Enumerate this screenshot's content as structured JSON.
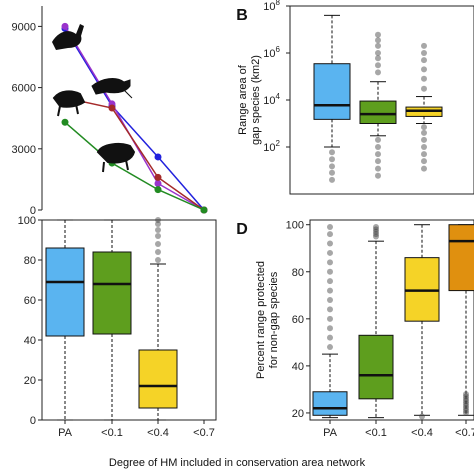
{
  "xlabel": "Degree of HM included in conservation area network",
  "chart_data": [
    {
      "panel": "",
      "type": "line",
      "categories": [
        "PA",
        "<0.1",
        "<0.4",
        "<0.7"
      ],
      "ylim": [
        0,
        10000
      ],
      "yticks": [
        0,
        3000,
        6000,
        9000
      ],
      "ylabel": "",
      "series": [
        {
          "color": "#2222dd",
          "values": [
            8900,
            5100,
            2600,
            0
          ]
        },
        {
          "color": "#9933cc",
          "values": [
            9000,
            5200,
            1300,
            0
          ]
        },
        {
          "color": "#a52a2a",
          "values": [
            5500,
            5000,
            1600,
            0
          ]
        },
        {
          "color": "#228b22",
          "values": [
            4300,
            2300,
            1000,
            0
          ]
        }
      ],
      "icons": [
        "bird-silhouette",
        "rodent-silhouette",
        "primate-silhouette",
        "boar-silhouette"
      ]
    },
    {
      "panel": "B",
      "type": "box",
      "scale": "log",
      "ylim": [
        1,
        100000000
      ],
      "yticks": [
        {
          "v": 100,
          "e": "2"
        },
        {
          "v": 10000,
          "e": "4"
        },
        {
          "v": 1000000,
          "e": "6"
        },
        {
          "v": 100000000,
          "e": "8"
        }
      ],
      "tick_base": "10",
      "ylabel_lines": [
        "Range area of",
        "gap species (km2)"
      ],
      "boxes": [
        {
          "color": "#5ab4f0",
          "whisker_low": 100,
          "q1": 1500,
          "median": 6000,
          "q3": 350000,
          "whisker_high": 40000000,
          "outliers_low": [
            60,
            30,
            15,
            8,
            4
          ],
          "outliers_high": []
        },
        {
          "color": "#5e9e1e",
          "whisker_low": 300,
          "q1": 1000,
          "median": 2500,
          "q3": 9000,
          "whisker_high": 60000,
          "outliers_low": [
            200,
            100,
            50,
            25,
            12,
            6
          ],
          "outliers_high": [
            150000,
            300000,
            600000,
            1000000,
            2000000,
            3500000,
            6000000
          ]
        },
        {
          "color": "#f5d327",
          "whisker_low": 1000,
          "q1": 2000,
          "median": 3500,
          "q3": 5000,
          "whisker_high": 14000,
          "outliers_low": [
            700,
            400,
            200,
            100,
            50,
            25,
            12
          ],
          "outliers_high": [
            30000,
            80000,
            200000,
            500000,
            1000000,
            2000000
          ]
        }
      ]
    },
    {
      "panel": "",
      "type": "box",
      "scale": "linear",
      "ylim": [
        0,
        100
      ],
      "yticks": [
        0,
        20,
        40,
        60,
        80,
        100
      ],
      "ylabel": "",
      "categories": [
        "PA",
        "<0.1",
        "<0.4",
        "<0.7"
      ],
      "boxes": [
        {
          "color": "#5ab4f0",
          "whisker_low": 0,
          "q1": 42,
          "median": 69,
          "q3": 86,
          "whisker_high": 100,
          "outliers_low": [],
          "outliers_high": []
        },
        {
          "color": "#5e9e1e",
          "whisker_low": 0,
          "q1": 43,
          "median": 68,
          "q3": 84,
          "whisker_high": 100,
          "outliers_low": [],
          "outliers_high": []
        },
        {
          "color": "#f5d327",
          "whisker_low": 0,
          "q1": 6,
          "median": 17,
          "q3": 35,
          "whisker_high": 78,
          "outliers_low": [],
          "outliers_high": [
            80,
            84,
            88,
            92,
            95,
            98,
            100
          ]
        }
      ]
    },
    {
      "panel": "D",
      "type": "box",
      "scale": "linear",
      "ylim": [
        17,
        102
      ],
      "yticks": [
        20,
        40,
        60,
        80,
        100
      ],
      "ylabel_lines": [
        "Percent range protected",
        "for non-gap species"
      ],
      "categories": [
        "PA",
        "<0.1",
        "<0.4",
        "<0.7"
      ],
      "boxes": [
        {
          "color": "#5ab4f0",
          "whisker_low": 18,
          "q1": 19,
          "median": 22,
          "q3": 29,
          "whisker_high": 45,
          "outliers_low": [],
          "outliers_high": [
            48,
            52,
            56,
            60,
            64,
            68,
            72,
            76,
            80,
            84,
            88,
            92,
            96,
            99
          ]
        },
        {
          "color": "#5e9e1e",
          "whisker_low": 18,
          "q1": 26,
          "median": 36,
          "q3": 53,
          "whisker_high": 93,
          "outliers_low": [],
          "outliers_high": [
            95,
            96,
            97,
            98,
            99
          ]
        },
        {
          "color": "#f5d327",
          "whisker_low": 19,
          "q1": 59,
          "median": 72,
          "q3": 86,
          "whisker_high": 100,
          "outliers_low": [
            18.5
          ],
          "outliers_high": []
        },
        {
          "color": "#e0900f",
          "whisker_low": 19,
          "q1": 72,
          "median": 93,
          "q3": 100,
          "whisker_high": 100,
          "outliers_low": [
            20,
            21,
            22,
            23,
            24,
            25,
            26,
            27,
            28
          ],
          "outliers_high": []
        }
      ]
    }
  ]
}
